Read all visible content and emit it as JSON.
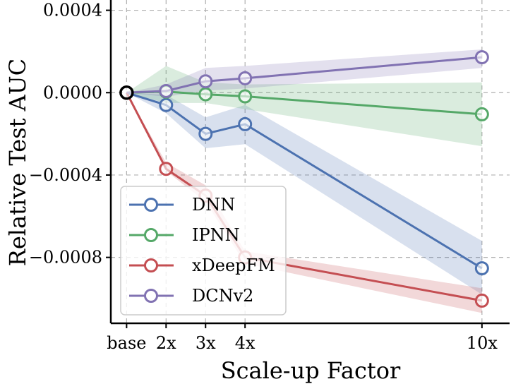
{
  "chart_data": {
    "type": "line",
    "title": "",
    "xlabel": "Scale-up Factor",
    "ylabel": "Relative Test AUC",
    "x": [
      1,
      2,
      3,
      4,
      10
    ],
    "x_tick_labels": [
      "base",
      "2x",
      "3x",
      "4x",
      "10x"
    ],
    "y_ticks": [
      0.0004,
      0.0,
      -0.0004,
      -0.0008
    ],
    "y_tick_labels": [
      "0.0004",
      "0.0000",
      "−0.0004",
      "−0.0008"
    ],
    "xlim": [
      0.6,
      10.7
    ],
    "ylim": [
      -0.00112,
      0.00045
    ],
    "grid": true,
    "legend_position": "lower-left",
    "series": [
      {
        "name": "DNN",
        "color": "#4c72b0",
        "values": [
          0.0,
          -6e-05,
          -0.0002,
          -0.000153,
          -0.000853
        ],
        "lower": [
          0.0,
          -0.0001,
          -0.00027,
          -0.00025,
          -0.00098
        ],
        "upper": [
          0.0,
          -1e-05,
          -0.00012,
          -6e-05,
          -0.00072
        ]
      },
      {
        "name": "IPNN",
        "color": "#55a868",
        "values": [
          0.0,
          5e-06,
          -8e-06,
          -1.8e-05,
          -0.000105
        ],
        "lower": [
          0.0,
          -5e-05,
          -5e-05,
          -8e-05,
          -0.00026
        ],
        "upper": [
          0.0,
          0.00013,
          5e-05,
          4e-05,
          5e-05
        ]
      },
      {
        "name": "xDeepFM",
        "color": "#c44e52",
        "values": [
          0.0,
          -0.00037,
          -0.0005,
          -0.0008,
          -0.00101
        ],
        "lower": [
          0.0,
          -0.00038,
          -0.00053,
          -0.00083,
          -0.00107
        ],
        "upper": [
          0.0,
          -0.00034,
          -0.00045,
          -0.00077,
          -0.00095
        ]
      },
      {
        "name": "DCNv2",
        "color": "#8172b2",
        "values": [
          0.0,
          8e-06,
          5.5e-05,
          7e-05,
          0.000172
        ],
        "lower": [
          0.0,
          -2e-05,
          1e-05,
          2e-05,
          0.00012
        ],
        "upper": [
          0.0,
          4e-05,
          0.00012,
          0.00013,
          0.00021
        ]
      }
    ],
    "base_marker_color": "#000000"
  }
}
